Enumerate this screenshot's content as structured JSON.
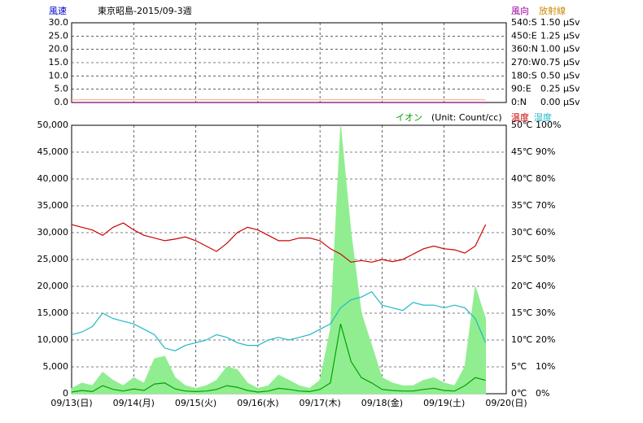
{
  "chart_data": [
    {
      "type": "line",
      "title": "東京昭島-2015/09-3週",
      "ylabel": "風速",
      "y2label": "風向",
      "y3label": "放射線",
      "xlim": [
        0,
        7
      ],
      "xticks": [
        {
          "value": 0,
          "label": "09/13(日)"
        },
        {
          "value": 1,
          "label": "09/14(月)"
        },
        {
          "value": 2,
          "label": "09/15(火)"
        },
        {
          "value": 3,
          "label": "09/16(水)"
        },
        {
          "value": 4,
          "label": "09/17(木)"
        },
        {
          "value": 5,
          "label": "09/18(金)"
        },
        {
          "value": 6,
          "label": "09/19(土)"
        },
        {
          "value": 7,
          "label": "09/20(日)"
        }
      ],
      "ylim": [
        0,
        30
      ],
      "yticks": [
        {
          "value": 0,
          "label": "0.0"
        },
        {
          "value": 5,
          "label": "5.0"
        },
        {
          "value": 10,
          "label": "10.0"
        },
        {
          "value": 15,
          "label": "15.0"
        },
        {
          "value": 20,
          "label": "20.0"
        },
        {
          "value": 25,
          "label": "25.0"
        },
        {
          "value": 30,
          "label": "30.0"
        }
      ],
      "y2lim": [
        0,
        540
      ],
      "y2ticks": [
        {
          "value": 0,
          "label": "0:N"
        },
        {
          "value": 90,
          "label": "90:E"
        },
        {
          "value": 180,
          "label": "180:S"
        },
        {
          "value": 270,
          "label": "270:W"
        },
        {
          "value": 360,
          "label": "360:N"
        },
        {
          "value": 450,
          "label": "450:E"
        },
        {
          "value": 540,
          "label": "540:S"
        }
      ],
      "y3lim": [
        0,
        1.5
      ],
      "y3ticks": [
        {
          "value": 0,
          "label": "0.00 μSv"
        },
        {
          "value": 0.25,
          "label": "0.25 μSv"
        },
        {
          "value": 0.5,
          "label": "0.50 μSv"
        },
        {
          "value": 0.75,
          "label": "0.75 μSv"
        },
        {
          "value": 1,
          "label": "1.00 μSv"
        },
        {
          "value": 1.25,
          "label": "1.25 μSv"
        },
        {
          "value": 1.5,
          "label": "1.50 μSv"
        }
      ],
      "grid": true,
      "x": [
        0,
        0.167,
        0.333,
        0.5,
        0.667,
        0.833,
        1,
        1.167,
        1.333,
        1.5,
        1.667,
        1.833,
        2,
        2.167,
        2.333,
        2.5,
        2.667,
        2.833,
        3,
        3.167,
        3.333,
        3.5,
        3.667,
        3.833,
        4,
        4.167,
        4.333,
        4.5,
        4.667,
        4.833,
        5,
        5.167,
        5.333,
        5.5,
        5.667,
        5.833,
        6,
        6.167,
        6.333,
        6.5,
        6.667
      ],
      "series": [
        {
          "name": "放射線",
          "color": "#f4b183",
          "axis": "y3",
          "values": [
            0.05,
            0.05,
            0.05,
            0.05,
            0.05,
            0.05,
            0.05,
            0.05,
            0.05,
            0.05,
            0.05,
            0.05,
            0.05,
            0.05,
            0.05,
            0.05,
            0.05,
            0.05,
            0.05,
            0.05,
            0.05,
            0.05,
            0.05,
            0.05,
            0.05,
            0.05,
            0.05,
            0.05,
            0.05,
            0.05,
            0.05,
            0.05,
            0.05,
            0.05,
            0.05,
            0.05,
            0.05,
            0.05,
            0.05,
            0.05,
            0.05
          ]
        },
        {
          "name": "風向",
          "color": "#800080",
          "axis": "y2",
          "values": [
            0,
            0,
            0,
            0,
            0,
            0,
            0,
            0,
            0,
            0,
            0,
            0,
            0,
            0,
            0,
            0,
            0,
            0,
            0,
            0,
            0,
            0,
            0,
            0,
            0,
            0,
            0,
            0,
            0,
            0,
            0,
            0,
            0,
            0,
            0,
            0,
            0,
            0,
            0,
            0,
            0
          ]
        }
      ]
    },
    {
      "type": "line",
      "annotation": "(Unit: Count/cc)",
      "xlim": [
        0,
        7
      ],
      "xticks": [
        {
          "value": 0,
          "label": "09/13(日)"
        },
        {
          "value": 1,
          "label": "09/14(月)"
        },
        {
          "value": 2,
          "label": "09/15(火)"
        },
        {
          "value": 3,
          "label": "09/16(水)"
        },
        {
          "value": 4,
          "label": "09/17(木)"
        },
        {
          "value": 5,
          "label": "09/18(金)"
        },
        {
          "value": 6,
          "label": "09/19(土)"
        },
        {
          "value": 7,
          "label": "09/20(日)"
        }
      ],
      "ylim": [
        0,
        50000
      ],
      "yticks": [
        0,
        {
          "value": 5000,
          "label": "5,000"
        },
        {
          "value": 10000,
          "label": "10,000"
        },
        {
          "value": 15000,
          "label": "15,000"
        },
        {
          "value": 20000,
          "label": "20,000"
        },
        {
          "value": 25000,
          "label": "25,000"
        },
        {
          "value": 30000,
          "label": "30,000"
        },
        {
          "value": 35000,
          "label": "35,000"
        },
        {
          "value": 40000,
          "label": "40,000"
        },
        {
          "value": 45000,
          "label": "45,000"
        },
        {
          "value": 50000,
          "label": "50,000"
        }
      ],
      "y2lim": [
        0,
        50
      ],
      "y2ticks": [
        {
          "value": 0,
          "label": "0℃"
        },
        {
          "value": 5,
          "label": "5℃"
        },
        {
          "value": 10,
          "label": "10℃"
        },
        {
          "value": 15,
          "label": "15℃"
        },
        {
          "value": 20,
          "label": "20℃"
        },
        {
          "value": 25,
          "label": "25℃"
        },
        {
          "value": 30,
          "label": "30℃"
        },
        {
          "value": 35,
          "label": "35℃"
        },
        {
          "value": 40,
          "label": "40℃"
        },
        {
          "value": 45,
          "label": "45℃"
        },
        {
          "value": 50,
          "label": "50℃"
        }
      ],
      "y3lim": [
        0,
        100
      ],
      "y3ticks": [
        {
          "value": 0,
          "label": "0%"
        },
        {
          "value": 10,
          "label": "10%"
        },
        {
          "value": 20,
          "label": "20%"
        },
        {
          "value": 30,
          "label": "30%"
        },
        {
          "value": 40,
          "label": "40%"
        },
        {
          "value": 50,
          "label": "50%"
        },
        {
          "value": 60,
          "label": "60%"
        },
        {
          "value": 70,
          "label": "70%"
        },
        {
          "value": 80,
          "label": "80%"
        },
        {
          "value": 90,
          "label": "90%"
        },
        {
          "value": 100,
          "label": "100%"
        }
      ],
      "grid": true,
      "x": [
        0,
        0.167,
        0.333,
        0.5,
        0.667,
        0.833,
        1,
        1.167,
        1.333,
        1.5,
        1.667,
        1.833,
        2,
        2.167,
        2.333,
        2.5,
        2.667,
        2.833,
        3,
        3.167,
        3.333,
        3.5,
        3.667,
        3.833,
        4,
        4.167,
        4.333,
        4.5,
        4.667,
        4.833,
        5,
        5.167,
        5.333,
        5.5,
        5.667,
        5.833,
        6,
        6.167,
        6.333,
        6.5,
        6.667
      ],
      "series": [
        {
          "name": "イオン",
          "color": "#90ee90",
          "area": true,
          "values": [
            1000,
            2000,
            1500,
            4000,
            2500,
            1500,
            3000,
            2000,
            6500,
            7000,
            3000,
            1500,
            1000,
            1500,
            2500,
            5000,
            4500,
            2000,
            1000,
            1500,
            3500,
            2500,
            1500,
            1000,
            2500,
            12000,
            50000,
            30000,
            15000,
            9000,
            3000,
            2000,
            1500,
            1500,
            2500,
            3000,
            2000,
            1500,
            5000,
            20000,
            14000
          ]
        },
        {
          "color": "#00a000",
          "values": [
            300,
            600,
            400,
            1500,
            800,
            500,
            900,
            600,
            1800,
            2000,
            900,
            500,
            400,
            500,
            800,
            1500,
            1200,
            600,
            300,
            500,
            1000,
            800,
            500,
            400,
            800,
            2000,
            13000,
            6000,
            3000,
            2000,
            800,
            600,
            500,
            500,
            800,
            1000,
            600,
            500,
            1500,
            3000,
            2500
          ]
        },
        {
          "name": "温度",
          "color": "#cc0000",
          "axis": "y2",
          "values": [
            31.5,
            31,
            30.5,
            29.5,
            31,
            31.8,
            30.5,
            29.5,
            29,
            28.5,
            28.8,
            29.2,
            28.5,
            27.5,
            26.5,
            28,
            30,
            31,
            30.5,
            29.5,
            28.5,
            28.5,
            29,
            29,
            28.5,
            27,
            26,
            24.5,
            24.8,
            24.5,
            25,
            24.6,
            25,
            26,
            27,
            27.5,
            27,
            26.8,
            26.2,
            27.5,
            31.5
          ]
        },
        {
          "name": "湿度",
          "color": "#20b8c8",
          "axis": "y3",
          "values": [
            22,
            23,
            25,
            30,
            28,
            27,
            26,
            24,
            22,
            17,
            16,
            18,
            19,
            20,
            22,
            21,
            19,
            18,
            18,
            20,
            21,
            20,
            21,
            22,
            24,
            26,
            32,
            35,
            36,
            38,
            33,
            32,
            31,
            34,
            33,
            33,
            32,
            33,
            32,
            28,
            19
          ]
        }
      ]
    }
  ]
}
